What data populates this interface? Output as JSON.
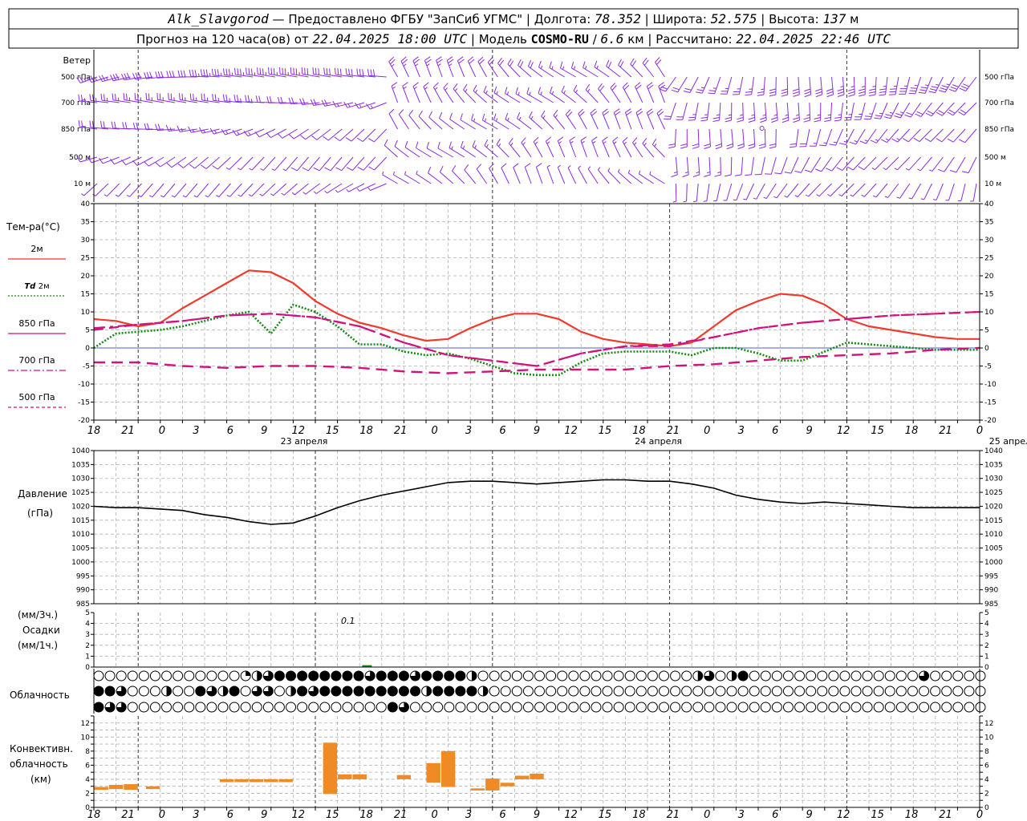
{
  "header": {
    "station": "Alk_Slavgorod",
    "provider_prefix": "Предоставлено ФГБУ",
    "provider_name": "\"ЗапСиб УГМС\"",
    "lon_label": "Долгота:",
    "lon_value": "78.352",
    "lat_label": "Широта:",
    "lat_value": "52.575",
    "alt_label": "Высота:",
    "alt_value": "137",
    "alt_unit": "м",
    "forecast_label": "Прогноз на 120 часа(ов) от",
    "forecast_start": "22.04.2025 18:00 UTC",
    "model_label": "Модель",
    "model_name": "COSMO-RU",
    "model_res": "6.6",
    "model_res_unit": "км",
    "calc_label": "Рассчитано:",
    "calc_time": "22.04.2025 22:46 UTC"
  },
  "x_hour_labels": [
    "18",
    "21",
    "0",
    "3",
    "6",
    "9",
    "12",
    "15",
    "18",
    "21",
    "0",
    "3",
    "6",
    "9",
    "12",
    "15",
    "18",
    "21",
    "0",
    "3",
    "6",
    "9",
    "12",
    "15",
    "18",
    "21",
    "0"
  ],
  "day_labels": [
    "23 апреля",
    "24 апреля",
    "25 апреля"
  ],
  "wind_panel": {
    "title": "Ветер",
    "levels": [
      "500 гПа",
      "700 гПа",
      "850 гПа",
      "500 м",
      "10 м"
    ],
    "color": "#8a2be2"
  },
  "temp_panel": {
    "title": "Тем-ра(°С)",
    "legend": [
      {
        "label": "2м",
        "prefix": "",
        "color": "#ef3b2c",
        "style": "solid"
      },
      {
        "label": "2м",
        "prefix": "Td",
        "color": "#138a13",
        "style": "dotted"
      },
      {
        "label": "850 гПа",
        "prefix": "",
        "color": "#d1137e",
        "style": "solid-thin"
      },
      {
        "label": "700 гПа",
        "prefix": "",
        "color": "#d1137e",
        "style": "dashdot"
      },
      {
        "label": "500 гПа",
        "prefix": "",
        "color": "#d1137e",
        "style": "dashed"
      }
    ],
    "yticks": [
      "40",
      "35",
      "30",
      "25",
      "20",
      "15",
      "10",
      "5",
      "0",
      "-5",
      "-10",
      "-15",
      "-20"
    ]
  },
  "pressure_panel": {
    "title_line1": "Давление",
    "title_line2": "(гПа)",
    "yticks": [
      "1040",
      "1035",
      "1030",
      "1025",
      "1020",
      "1015",
      "1010",
      "1005",
      "1000",
      "995",
      "990",
      "985"
    ]
  },
  "precip_panel": {
    "title_line1": "(мм/3ч.)",
    "title_line2": "Осадки",
    "title_line3": "(мм/1ч.)",
    "yticks": [
      "5",
      "4",
      "3",
      "2",
      "1",
      "0"
    ],
    "annotation": "0.1"
  },
  "cloud_panel": {
    "title": "Облачность"
  },
  "conv_panel": {
    "title_line1": "Конвективн.",
    "title_line2": "облачность",
    "title_line3": "(км)",
    "yticks": [
      "12",
      "10",
      "8",
      "6",
      "4",
      "2",
      "0"
    ],
    "color": "#f08a24"
  },
  "chart_data": {
    "type": "line",
    "x_unit": "hours since 22.04.2025 18:00 UTC",
    "xlim": [
      0,
      120
    ],
    "temperature": {
      "ylim": [
        -20,
        40
      ],
      "series": [
        {
          "name": "2м",
          "x": [
            0,
            3,
            6,
            9,
            12,
            15,
            18,
            21,
            24,
            27,
            30,
            33,
            36,
            39,
            42,
            45,
            48,
            51,
            54,
            57,
            60,
            63,
            66,
            69,
            72,
            75,
            78,
            81,
            84,
            87,
            90,
            93,
            96,
            99,
            102,
            105,
            108,
            111,
            114,
            117,
            120
          ],
          "values": [
            8,
            7.5,
            6,
            7,
            11,
            14.5,
            18,
            21.5,
            21,
            18,
            13,
            9.5,
            7,
            5.5,
            3.5,
            2,
            2.5,
            5.5,
            8,
            9.5,
            9.5,
            8,
            4.5,
            2.5,
            1.5,
            1,
            0.5,
            1.5,
            6,
            10.5,
            13,
            15,
            14.5,
            12,
            8,
            6,
            5,
            4,
            3,
            2.5,
            2.5
          ]
        },
        {
          "name": "Td 2м",
          "x": [
            0,
            3,
            6,
            9,
            12,
            15,
            18,
            21,
            24,
            27,
            30,
            33,
            36,
            39,
            42,
            45,
            48,
            51,
            54,
            57,
            60,
            63,
            66,
            69,
            72,
            75,
            78,
            81,
            84,
            87,
            90,
            93,
            96,
            99,
            102,
            105,
            108,
            111,
            114,
            117,
            120
          ],
          "values": [
            0,
            4,
            4.5,
            5,
            6,
            7.5,
            9,
            10,
            4,
            12,
            10,
            6,
            1,
            1,
            -1,
            -2,
            -1.5,
            -3,
            -5,
            -7,
            -7.5,
            -7.5,
            -4,
            -1.5,
            -1,
            -1,
            -1,
            -2,
            0,
            0,
            -1.5,
            -3.5,
            -3.5,
            -1,
            1.5,
            1,
            0.5,
            0,
            -0.5,
            -0.5,
            -0.5
          ]
        },
        {
          "name": "850 гПа",
          "x": [
            0,
            6,
            12,
            18,
            24,
            30,
            36,
            42,
            48,
            54,
            60,
            66,
            72,
            78,
            84,
            90,
            96,
            102,
            108,
            114,
            120
          ],
          "values": [
            5.5,
            6.5,
            7.5,
            9,
            9.5,
            8.5,
            6,
            1.5,
            -2,
            -3.5,
            -5,
            -1.5,
            0.5,
            1,
            3,
            5.5,
            7,
            8,
            9,
            9.5,
            10
          ]
        },
        {
          "name": "700 гПа",
          "x": [
            0,
            6,
            12,
            18,
            24,
            30,
            36,
            42,
            48,
            54,
            60,
            66,
            72,
            78,
            84,
            90,
            96,
            102,
            108,
            114,
            120
          ],
          "values": [
            -4,
            -4,
            -5,
            -5.5,
            -5,
            -5,
            -5.5,
            -6.5,
            -7,
            -6.5,
            -6,
            -6,
            -6,
            -5,
            -4.5,
            -3.5,
            -2.5,
            -2,
            -1.5,
            -0.5,
            0
          ]
        },
        {
          "name": "500 гПа",
          "x": [
            0,
            6,
            12,
            18,
            24,
            30,
            36,
            42,
            48,
            54,
            60,
            66,
            72,
            78,
            84,
            90,
            96,
            102,
            108,
            114,
            120
          ],
          "values": [
            5,
            6.5,
            7.5,
            9,
            9.5,
            8.5,
            6,
            1.5,
            -2,
            -3.5,
            -5,
            -1.5,
            0.5,
            0.5,
            3,
            5.5,
            7,
            8,
            9,
            9.5,
            10
          ]
        }
      ]
    },
    "pressure": {
      "ylim": [
        985,
        1040
      ],
      "x": [
        0,
        3,
        6,
        9,
        12,
        15,
        18,
        21,
        24,
        27,
        30,
        33,
        36,
        39,
        42,
        45,
        48,
        51,
        54,
        57,
        60,
        63,
        66,
        69,
        72,
        75,
        78,
        81,
        84,
        87,
        90,
        93,
        96,
        99,
        102,
        105,
        108,
        111,
        114,
        117,
        120
      ],
      "values": [
        1020,
        1019.5,
        1019.5,
        1019,
        1018.5,
        1017,
        1016,
        1014.5,
        1013.5,
        1014,
        1016.5,
        1019.5,
        1022,
        1024,
        1025.5,
        1027,
        1028.5,
        1029,
        1029,
        1028.5,
        1028,
        1028.5,
        1029,
        1029.5,
        1029.5,
        1029,
        1029,
        1028,
        1026.5,
        1024,
        1022.5,
        1021.5,
        1021,
        1021.5,
        1021,
        1020.5,
        1020,
        1019.5,
        1019.5,
        1019.5,
        1019.5
      ]
    },
    "precipitation": {
      "ylim": [
        0,
        5
      ],
      "x": [
        37
      ],
      "values": [
        0.1
      ]
    },
    "convective": {
      "ylim": [
        0,
        13
      ],
      "bars": [
        {
          "x": 0,
          "base": 2.5,
          "top": 2.9
        },
        {
          "x": 2,
          "base": 2.6,
          "top": 3.2
        },
        {
          "x": 4,
          "base": 2.5,
          "top": 3.3
        },
        {
          "x": 7,
          "base": 2.6,
          "top": 3.0
        },
        {
          "x": 17,
          "base": 3.6,
          "top": 4.0
        },
        {
          "x": 19,
          "base": 3.6,
          "top": 4.0
        },
        {
          "x": 21,
          "base": 3.6,
          "top": 4.0
        },
        {
          "x": 23,
          "base": 3.6,
          "top": 4.0
        },
        {
          "x": 25,
          "base": 3.6,
          "top": 4.0
        },
        {
          "x": 31,
          "base": 1.9,
          "top": 9.2
        },
        {
          "x": 33,
          "base": 4.0,
          "top": 4.7
        },
        {
          "x": 35,
          "base": 4.0,
          "top": 4.7
        },
        {
          "x": 41,
          "base": 4.0,
          "top": 4.6
        },
        {
          "x": 45,
          "base": 3.5,
          "top": 6.3
        },
        {
          "x": 47,
          "base": 2.9,
          "top": 8.0
        },
        {
          "x": 51,
          "base": 2.4,
          "top": 2.7
        },
        {
          "x": 53,
          "base": 2.4,
          "top": 4.1
        },
        {
          "x": 55,
          "base": 3.0,
          "top": 3.5
        },
        {
          "x": 57,
          "base": 4.0,
          "top": 4.5
        },
        {
          "x": 59,
          "base": 4.0,
          "top": 4.8
        }
      ]
    },
    "cloud_cover_octas": {
      "rows": [
        "high",
        "middle",
        "low"
      ],
      "count": 79
    },
    "grid": true
  }
}
